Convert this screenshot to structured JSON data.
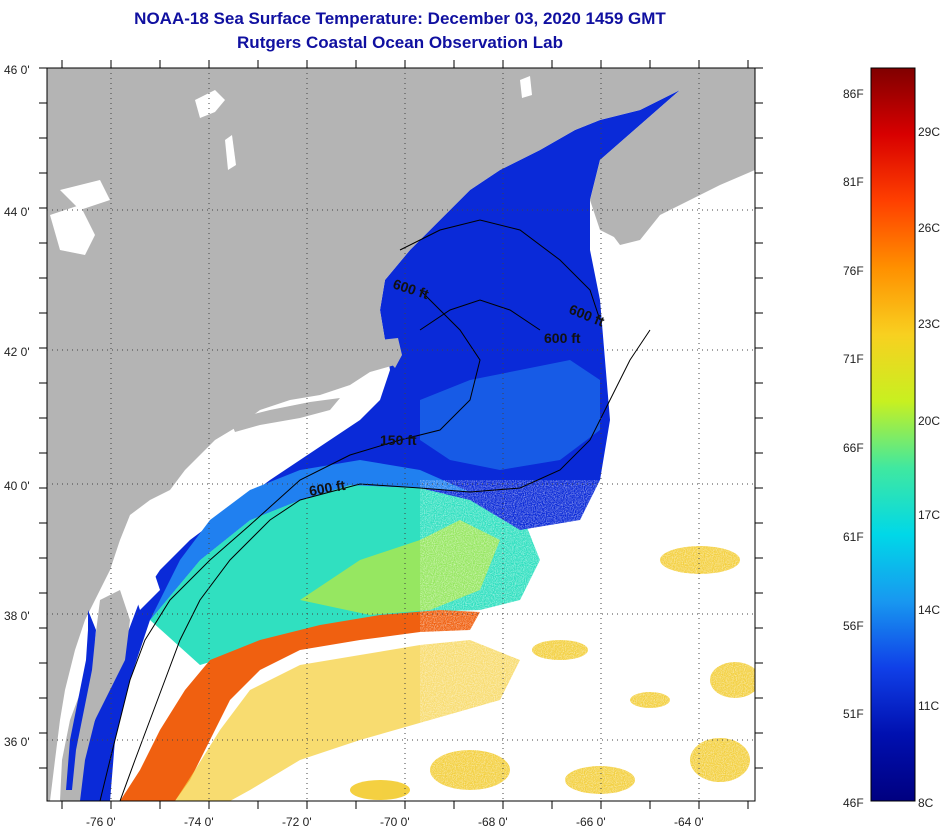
{
  "header": {
    "title": "NOAA-18 Sea Surface Temperature:  December 03, 2020 1459 GMT",
    "subtitle": "Rutgers Coastal Ocean Observation Lab"
  },
  "map": {
    "lat_labels": [
      "46 0'",
      "44 0'",
      "42 0'",
      "40 0'",
      "38 0'",
      "36 0'"
    ],
    "lon_labels": [
      "-76 0'",
      "-74 0'",
      "-72 0'",
      "-70 0'",
      "-68 0'",
      "-66 0'",
      "-64 0'"
    ],
    "contour_labels": [
      "600 ft",
      "600 ft",
      "600 ft",
      "150 ft",
      "600 ft"
    ],
    "colors": {
      "land": "#b4b4b4",
      "cloud": "#ffffff",
      "cold_water": "#0a2ad8",
      "gulf_stream": "#f06010",
      "warm_offshore": "#f2c820"
    }
  },
  "colorbar": {
    "fahrenheit": [
      "86F",
      "81F",
      "76F",
      "71F",
      "66F",
      "61F",
      "56F",
      "51F",
      "46F"
    ],
    "celsius": [
      "29C",
      "26C",
      "23C",
      "20C",
      "17C",
      "14C",
      "11C",
      "8C"
    ],
    "gradient_colors": [
      "#800000",
      "#d80000",
      "#ff4000",
      "#ff9000",
      "#f8d020",
      "#c8f020",
      "#40e8a0",
      "#00d8e8",
      "#1898f0",
      "#1040e8",
      "#0010b0",
      "#000080"
    ]
  }
}
